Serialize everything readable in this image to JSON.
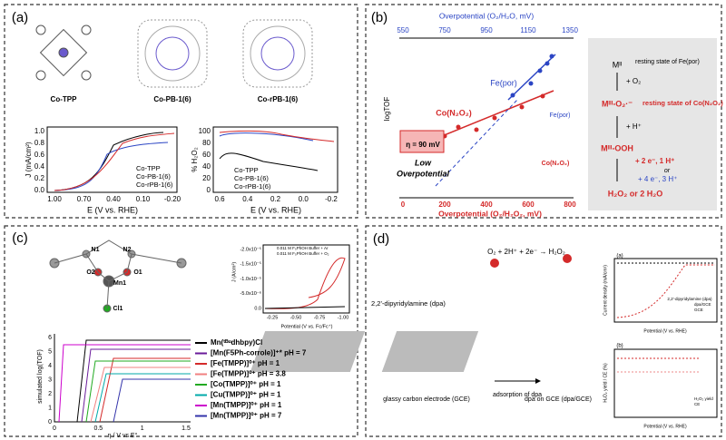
{
  "panels": {
    "a": {
      "label": "(a)",
      "structures": [
        "Co-TPP",
        "Co-PB-1(6)",
        "Co-rPB-1(6)"
      ],
      "plot1": {
        "ylabel": "J (mA/cm²)",
        "yticks": [
          "1.0",
          "0.8",
          "0.6",
          "0.4",
          "0.2",
          "0.0"
        ],
        "xticks": [
          "1.00",
          "0.70",
          "0.40",
          "0.10",
          "-0.20"
        ],
        "xlabel": "E (V vs. RHE)",
        "legend": [
          "Co-TPP",
          "Co-PB-1(6)",
          "Co-rPB-1(6)"
        ]
      },
      "plot2": {
        "ylabel": "% H₂O₂",
        "yticks": [
          "100",
          "80",
          "60",
          "40",
          "20",
          "0"
        ],
        "xticks": [
          "0.6",
          "0.4",
          "0.2",
          "0.0",
          "-0.2"
        ],
        "xlabel": "E (V vs. RHE)",
        "legend": [
          "Co-TPP",
          "Co-PB-1(6)",
          "Co-rPB-1(6)"
        ]
      }
    },
    "b": {
      "label": "(b)",
      "top_axis_title": "Overpotential (O₂/H₂O, mV)",
      "top_ticks": [
        "550",
        "750",
        "950",
        "1150",
        "1350"
      ],
      "ylabel": "logTOF",
      "bottom_ticks": [
        "0",
        "200",
        "400",
        "600",
        "800"
      ],
      "bottom_axis_title": "Overpotential (O₂/H₂O₂, mV)",
      "series_labels": [
        "Fe(por)",
        "Co(N₂O₂)"
      ],
      "eta": "η = 90 mV",
      "low": "Low",
      "overpotential": "Overpotential",
      "structure_labels": [
        "Fe(por)",
        "Co(N₂O₂)"
      ],
      "scheme": {
        "m2": "Mᴵᴵ",
        "o2": "+ O₂",
        "rest_fe": "resting state of Fe(por)",
        "m3o2": "Mᴵᴵᴵ-O₂·⁻",
        "rest_co": "resting state of Co(N₂O₂)",
        "h": "+ H⁺",
        "m3ooh": "Mᴵᴵᴵ-OOH",
        "e2": "+ 2 e⁻, 1 H⁺",
        "or": "or",
        "e4": "+ 4 e⁻, 3 H⁺",
        "product": "H₂O₂ or 2 H₂O"
      }
    },
    "c": {
      "label": "(c)",
      "atoms": [
        "N1",
        "N2",
        "Mn1",
        "O2",
        "O1",
        "Cl1"
      ],
      "inset": {
        "ylabel": "J (A/cm²)",
        "yticks": [
          "-2.0x10⁻⁵",
          "-1.5x10⁻⁵",
          "-1.0x10⁻⁵",
          "-5.0x10⁻⁶",
          "0.0"
        ],
        "legend": [
          "0.011 M F₅PhOH Buffer + Ar",
          "0.011 M F₅PhOH Buffer + O₂"
        ],
        "xticks": [
          "-0.25",
          "-0.50",
          "-0.75",
          "-1.00"
        ],
        "xlabel": "Potential (V vs. Fc/Fc⁺)"
      },
      "main": {
        "ylabel": "simulated log(TOF)",
        "yticks": [
          "6",
          "5",
          "4",
          "3",
          "2",
          "1",
          "0"
        ],
        "xticks": [
          "0",
          "0.5",
          "1",
          "1.5"
        ],
        "xlabel": "η / V vs E°",
        "legend": [
          "Mn(ᵗᴮᵘdhbpy)Cl",
          "[Mn(F5Ph-corrole)]⁺* pH = 7",
          "[Fe(TMPP)]⁰⁺ pH = 1",
          "[Fe(TMPP)]⁰⁺ pH = 3.8",
          "[Co(TMPP)]⁰⁺ pH = 1",
          "[Cu(TMPP)]⁰⁺ pH = 1",
          "[Mn(TMPP)]⁰⁺ pH = 1",
          "[Mn(TMPP)]⁰⁺ pH = 7"
        ]
      }
    },
    "d": {
      "label": "(d)",
      "dpa": "2,2'-dipyridylamine (dpa)",
      "reaction": "O₂ + 2H⁺ + 2e⁻ → H₂O₂",
      "gce": "glassy carbon electrode (GCE)",
      "adsorption": "adsorption of dpa",
      "dpagce": "dpa on GCE (dpa/GCE)",
      "sub_a": {
        "label": "(a)",
        "ylabel": "Current density (mA/cm²)",
        "inset_label": "2,2'-dipyridylamine (dpa)",
        "legend": [
          "dpa/GCE",
          "GCE"
        ],
        "xlabel": "Potential (V vs. RHE)"
      },
      "sub_b": {
        "label": "(b)",
        "ylabel": "H₂O₂ yield / CE (%)",
        "legend": [
          "H₂O₂ yield",
          "CE"
        ],
        "xlabel": "Potential (V vs. RHE)"
      }
    }
  }
}
